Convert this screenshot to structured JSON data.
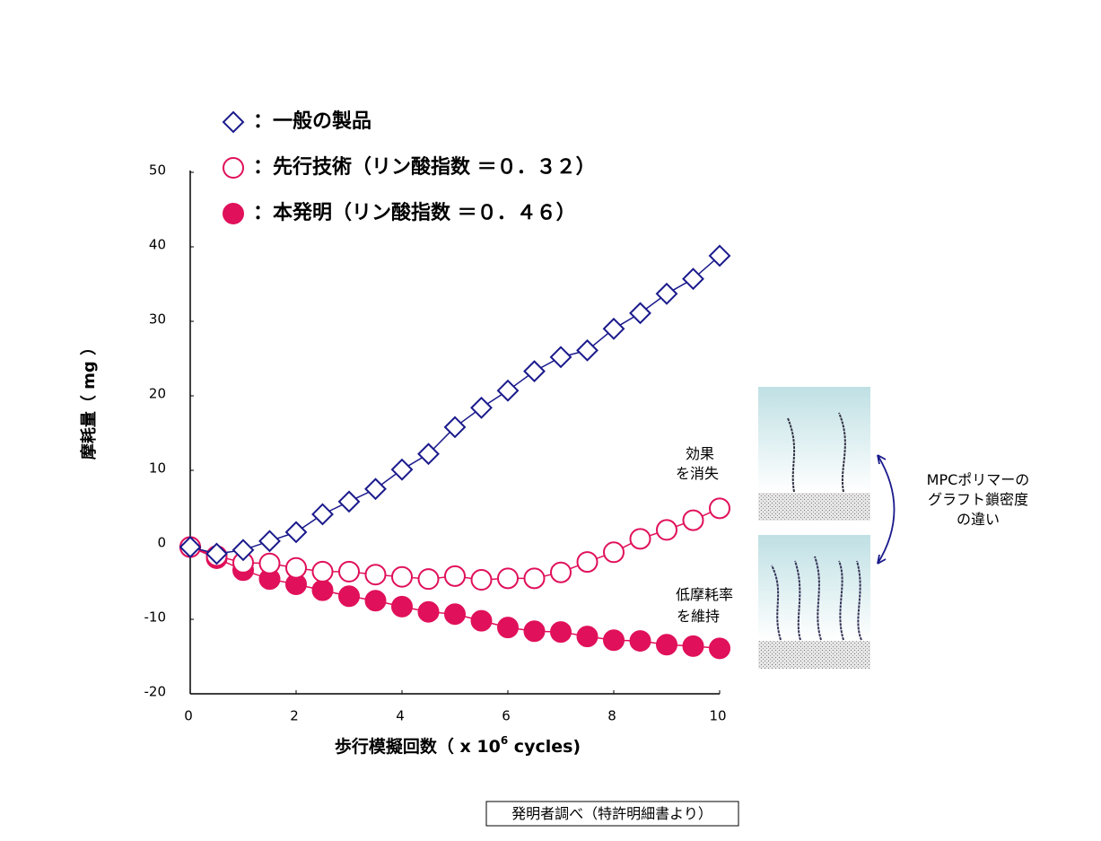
{
  "chart_data": {
    "type": "line",
    "x_label": "歩行模擬回数（ x 10",
    "x_label_sup": "6",
    "x_label_tail": " cycles)",
    "y_label": "摩耗量（ mg ）",
    "x": [
      0,
      0.5,
      1,
      1.5,
      2,
      2.5,
      3,
      3.5,
      4,
      4.5,
      5,
      5.5,
      6,
      6.5,
      7,
      7.5,
      8,
      8.5,
      9,
      9.5,
      10
    ],
    "xlim": [
      0,
      10
    ],
    "xticks": [
      0,
      2,
      4,
      6,
      8,
      10
    ],
    "ylim": [
      -20,
      50
    ],
    "yticks": [
      50,
      40,
      30,
      20,
      10,
      0,
      -10,
      -20
    ],
    "series": [
      {
        "name": "：一般の製品",
        "color": "#1a1a8c",
        "marker": "diamond",
        "values": [
          -0.3,
          -1.2,
          -0.7,
          0.5,
          1.7,
          4.1,
          5.8,
          7.5,
          10.1,
          12.2,
          15.8,
          18.4,
          20.7,
          23.3,
          25.2,
          26.1,
          29,
          31.1,
          33.7,
          35.7,
          38.8
        ]
      },
      {
        "name": "：先行技術（リン酸指数 ＝０．３２）",
        "color": "#e0105a",
        "marker": "open-circle",
        "values": [
          -0.3,
          -1.5,
          -2.4,
          -2.5,
          -3.1,
          -3.6,
          -3.6,
          -4,
          -4.3,
          -4.6,
          -4.2,
          -4.7,
          -4.5,
          -4.5,
          -3.7,
          -2.3,
          -1,
          0.8,
          2,
          3.3,
          4.9
        ]
      },
      {
        "name": "：本発明（リン酸指数 ＝０．４６）",
        "color": "#e0105a",
        "marker": "filled-circle",
        "values": [
          -0.3,
          -1.8,
          -3.4,
          -4.6,
          -5.3,
          -6.1,
          -6.9,
          -7.5,
          -8.3,
          -9,
          -9.3,
          -10.2,
          -11.1,
          -11.6,
          -11.7,
          -12.3,
          -12.8,
          -12.9,
          -13.4,
          -13.6,
          -13.9
        ]
      }
    ],
    "annotations": [
      {
        "lines": [
          "効果",
          "を消失"
        ]
      },
      {
        "lines": [
          "低摩耗率",
          "を維持"
        ]
      },
      {
        "lines": [
          "MPCポリマーの",
          "グラフト鎖密度",
          "の違い"
        ]
      }
    ],
    "source": "発明者調べ（特許明細書より）"
  }
}
